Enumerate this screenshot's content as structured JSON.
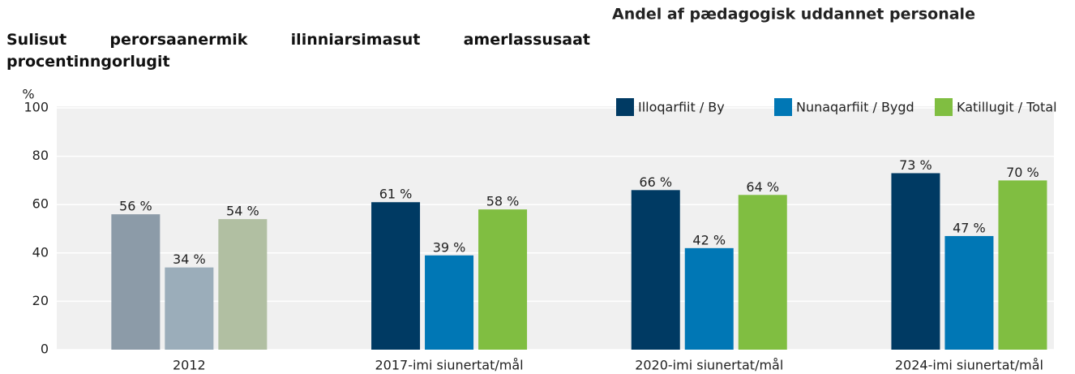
{
  "chart_data": {
    "type": "bar",
    "title": "Sulisut perorsaanermik ilinniarsimasut amerlassusaat procentinngorlugit",
    "subtitle": "Andel af pædagogisk uddannet personale",
    "y_label": "%",
    "categories": [
      "2012",
      "2017-imi siunertat/mål",
      "2020-imi siunertat/mål",
      "2024-imi siunertat/mål"
    ],
    "series": [
      {
        "name": "Illoqarfiit / By",
        "color": "#003a63",
        "colors": [
          "#8c9ba8",
          "#003a63",
          "#003a63",
          "#003a63"
        ],
        "values": [
          56,
          61,
          66,
          73
        ],
        "value_labels": [
          "56 %",
          "61 %",
          "66 %",
          "73 %"
        ]
      },
      {
        "name": "Nunaqarfiit / Bygd",
        "color": "#0077b5",
        "colors": [
          "#9badba",
          "#0077b5",
          "#0077b5",
          "#0077b5"
        ],
        "values": [
          34,
          39,
          42,
          47
        ],
        "value_labels": [
          "34 %",
          "39 %",
          "42 %",
          "47 %"
        ]
      },
      {
        "name": "Katillugit / Total",
        "color": "#80be41",
        "colors": [
          "#b1bfa2",
          "#80be41",
          "#80be41",
          "#80be41"
        ],
        "values": [
          54,
          58,
          64,
          70
        ],
        "value_labels": [
          "54 %",
          "58 %",
          "64 %",
          "70 %"
        ]
      }
    ],
    "ylim": [
      0,
      100
    ],
    "yticks": [
      0,
      20,
      40,
      60,
      80,
      100
    ],
    "grid": true,
    "legend": "top-right"
  }
}
